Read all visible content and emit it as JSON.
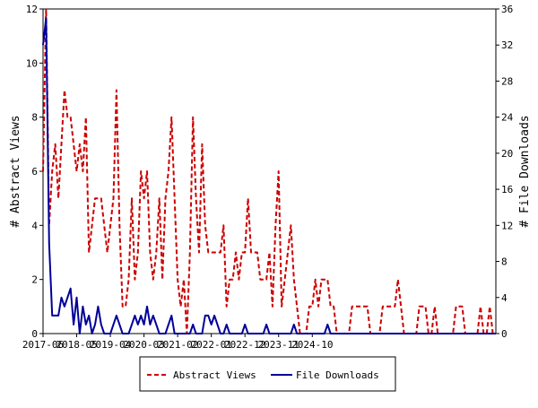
{
  "chart_data": {
    "type": "line",
    "x_tick_labels": [
      "2017-06",
      "2018-05",
      "2019-04",
      "2020-03",
      "2021-02",
      "2022-01",
      "2022-12",
      "2023-11",
      "2024-10"
    ],
    "left_axis": {
      "label": "# Abstract Views",
      "ylim": [
        0,
        12
      ],
      "ticks": [
        "0",
        "2",
        "4",
        "6",
        "8",
        "10",
        "12"
      ]
    },
    "right_axis": {
      "label": "# File Downloads",
      "ylim": [
        0,
        36
      ],
      "ticks": [
        "0",
        "4",
        "8",
        "12",
        "16",
        "20",
        "24",
        "28",
        "32",
        "36"
      ]
    },
    "grid": false,
    "legend_position": "bottom-center",
    "series": [
      {
        "name": "Abstract Views",
        "axis": "left",
        "color": "#cc0000",
        "dash": true,
        "values": [
          6,
          12,
          4,
          6,
          7,
          5,
          7,
          9,
          8,
          8,
          7,
          6,
          7,
          6,
          8,
          3,
          4,
          5,
          5,
          5,
          4,
          3,
          4,
          5,
          9,
          4,
          1,
          1,
          2,
          5,
          2,
          3,
          6,
          5,
          6,
          3,
          2,
          3,
          5,
          2,
          5,
          6,
          8,
          5,
          2,
          1,
          2,
          0,
          3,
          8,
          5,
          3,
          7,
          4,
          3,
          3,
          3,
          3,
          3,
          4,
          1,
          2,
          2,
          3,
          2,
          3,
          3,
          5,
          3,
          3,
          3,
          2,
          2,
          2,
          3,
          1,
          4,
          6,
          1,
          2,
          3,
          4,
          2,
          1,
          0,
          0,
          0,
          1,
          1,
          2,
          1,
          2,
          2,
          2,
          1,
          1,
          0,
          0,
          0,
          0,
          0,
          1,
          1,
          1,
          1,
          1,
          1,
          0,
          0,
          0,
          0,
          1,
          1,
          1,
          1,
          1,
          2,
          1,
          0,
          0,
          0,
          0,
          0,
          1,
          1,
          1,
          0,
          0,
          1,
          0,
          0,
          0,
          0,
          0,
          0,
          1,
          1,
          1,
          0,
          0,
          0,
          0,
          0,
          1,
          0,
          0,
          1,
          0,
          0
        ],
        "peaks_note": ""
      },
      {
        "name": "File Downloads",
        "axis": "right",
        "color": "#000099",
        "dash": false,
        "values": [
          32,
          35,
          10,
          2,
          2,
          2,
          4,
          3,
          4,
          5,
          1,
          4,
          0,
          3,
          1,
          2,
          0,
          1,
          3,
          1,
          0,
          0,
          0,
          1,
          2,
          1,
          0,
          0,
          0,
          1,
          2,
          1,
          2,
          1,
          3,
          1,
          2,
          1,
          0,
          0,
          0,
          1,
          2,
          0,
          0,
          0,
          0,
          0,
          0,
          1,
          0,
          0,
          0,
          2,
          2,
          1,
          2,
          1,
          0,
          0,
          1,
          0,
          0,
          0,
          0,
          0,
          1,
          0,
          0,
          0,
          0,
          0,
          0,
          1,
          0,
          0,
          0,
          0,
          0,
          0,
          0,
          0,
          1,
          0,
          0,
          0,
          0,
          0,
          0,
          0,
          0,
          0,
          0,
          1,
          0,
          0,
          0,
          0,
          0,
          0,
          0,
          0,
          0,
          0,
          0,
          0,
          0,
          0,
          0,
          0,
          0,
          0,
          0,
          0,
          0,
          0,
          0,
          0,
          0,
          0,
          0,
          0,
          0,
          0,
          0,
          0,
          0,
          0,
          0,
          0,
          0,
          0,
          0,
          0,
          0,
          0,
          0,
          0,
          0,
          0,
          0,
          0,
          0,
          0,
          0,
          0,
          0,
          0,
          0
        ]
      }
    ]
  }
}
